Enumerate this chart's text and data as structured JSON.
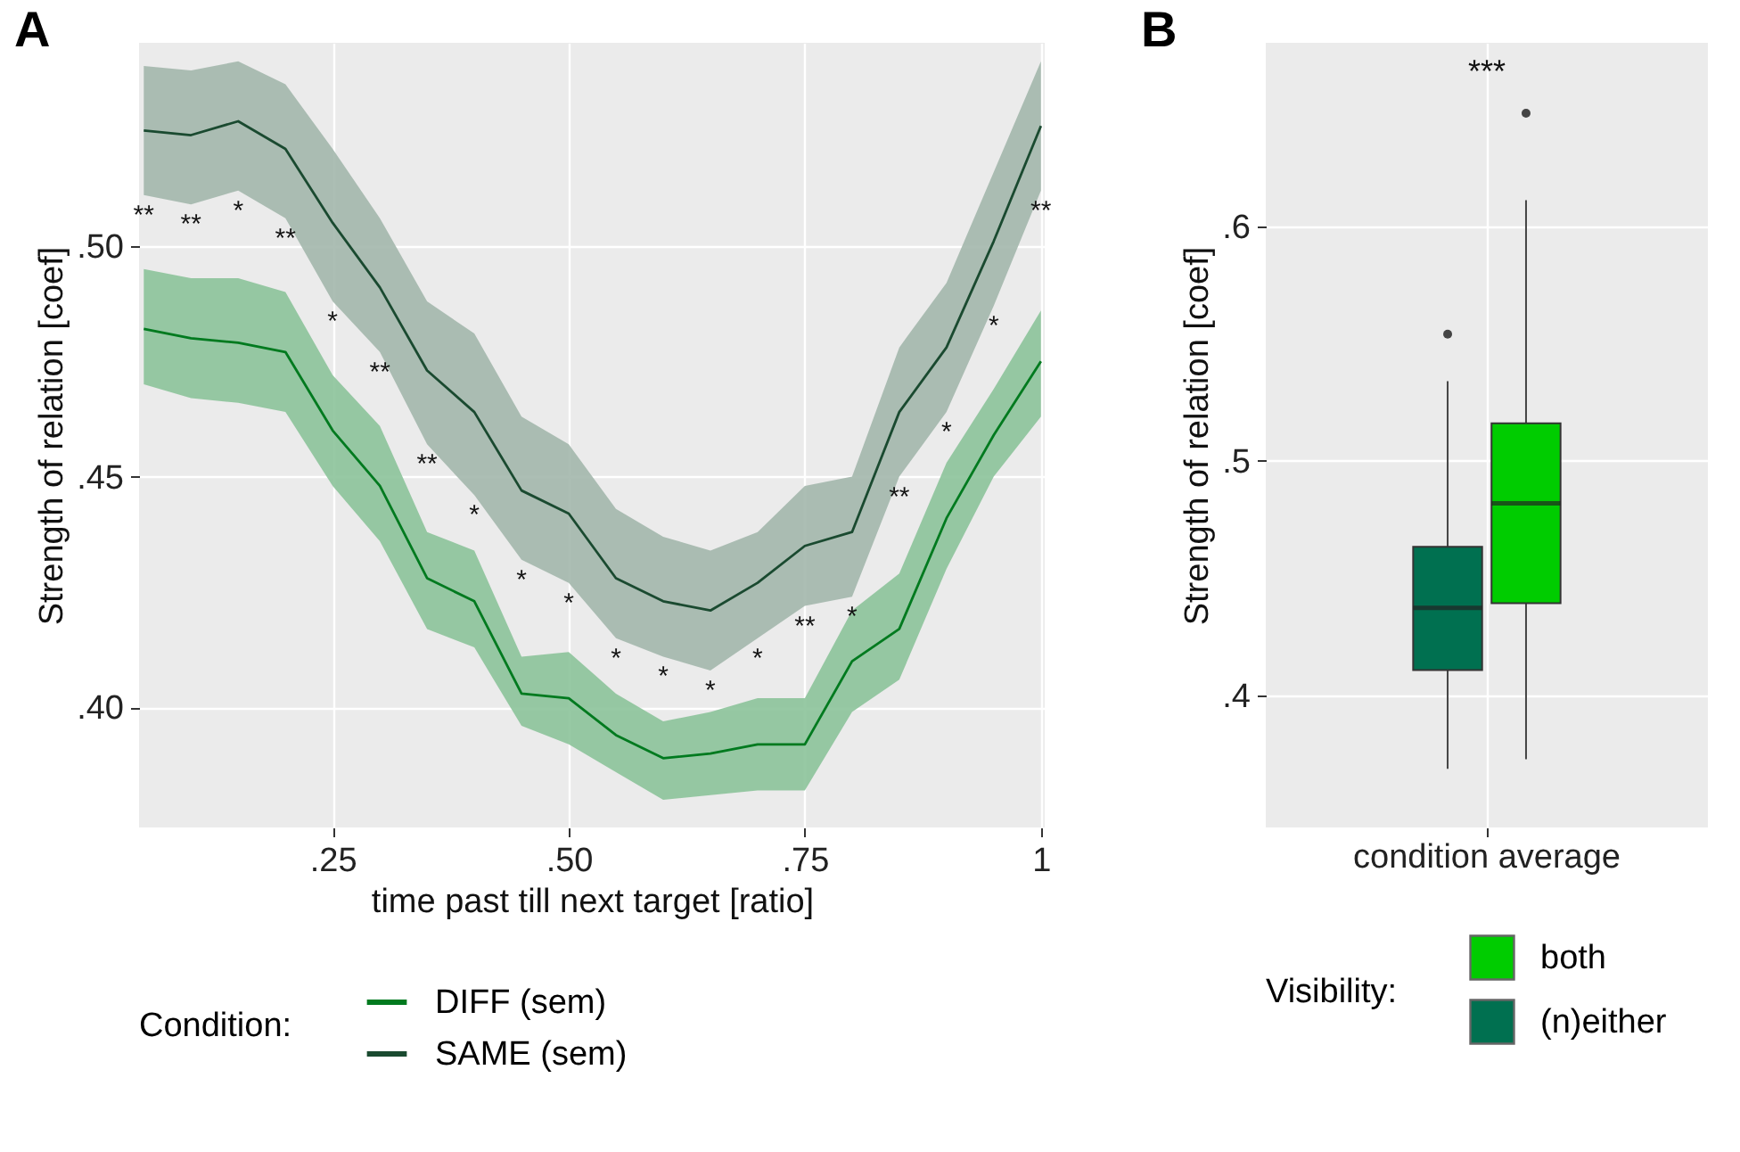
{
  "chart_data": [
    {
      "type": "line",
      "title": "A",
      "xlabel": "time past till next target [ratio]",
      "ylabel": "Strength of relation [coef]",
      "legend_title": "Condition:",
      "legend": "bottom",
      "grid": true,
      "x": [
        0.05,
        0.1,
        0.15,
        0.2,
        0.25,
        0.3,
        0.35,
        0.4,
        0.45,
        0.5,
        0.55,
        0.6,
        0.65,
        0.7,
        0.75,
        0.8,
        0.85,
        0.9,
        0.95,
        1.0
      ],
      "xlim": [
        0.045,
        1.004
      ],
      "xticks": [
        {
          "value": 0.25,
          "label": ".25"
        },
        {
          "value": 0.5,
          "label": ".50"
        },
        {
          "value": 0.75,
          "label": ".75"
        },
        {
          "value": 1,
          "label": "1"
        }
      ],
      "ylim": [
        0.374,
        0.544
      ],
      "yticks": [
        {
          "value": 0.4,
          "label": ".40"
        },
        {
          "value": 0.45,
          "label": ".45"
        },
        {
          "value": 0.5,
          "label": ".50"
        }
      ],
      "series": [
        {
          "name": "DIFF (sem)",
          "color": "#007a1f",
          "values": [
            0.482,
            0.48,
            0.479,
            0.477,
            0.46,
            0.448,
            0.428,
            0.423,
            0.403,
            0.402,
            0.394,
            0.389,
            0.39,
            0.392,
            0.392,
            0.41,
            0.417,
            0.441,
            0.459,
            0.475
          ],
          "lower": [
            0.47,
            0.467,
            0.466,
            0.464,
            0.448,
            0.436,
            0.417,
            0.413,
            0.396,
            0.392,
            0.386,
            0.38,
            0.381,
            0.382,
            0.382,
            0.399,
            0.406,
            0.43,
            0.45,
            0.463
          ],
          "upper": [
            0.495,
            0.493,
            0.493,
            0.49,
            0.472,
            0.461,
            0.438,
            0.434,
            0.411,
            0.412,
            0.403,
            0.397,
            0.399,
            0.402,
            0.402,
            0.421,
            0.429,
            0.453,
            0.469,
            0.486
          ]
        },
        {
          "name": "SAME (sem)",
          "color": "#1a4a30",
          "values": [
            0.525,
            0.524,
            0.527,
            0.521,
            0.505,
            0.491,
            0.473,
            0.464,
            0.447,
            0.442,
            0.428,
            0.423,
            0.421,
            0.427,
            0.435,
            0.438,
            0.464,
            0.478,
            0.501,
            0.526
          ],
          "lower": [
            0.511,
            0.509,
            0.512,
            0.506,
            0.488,
            0.477,
            0.457,
            0.446,
            0.432,
            0.427,
            0.415,
            0.411,
            0.408,
            0.415,
            0.422,
            0.424,
            0.45,
            0.464,
            0.487,
            0.512
          ],
          "upper": [
            0.539,
            0.538,
            0.54,
            0.535,
            0.521,
            0.506,
            0.488,
            0.481,
            0.463,
            0.457,
            0.443,
            0.437,
            0.434,
            0.438,
            0.448,
            0.45,
            0.478,
            0.492,
            0.516,
            0.54
          ]
        }
      ],
      "annotations": [
        "**",
        "**",
        "*",
        "**",
        "*",
        "**",
        "**",
        "*",
        "*",
        "*",
        "*",
        "*",
        "*",
        "*",
        "**",
        "*",
        "**",
        "*",
        "*",
        "**"
      ]
    },
    {
      "type": "box",
      "title": "B",
      "ylabel": "Strength of relation [coef]",
      "legend_title": "Visibility:",
      "legend": "bottom",
      "grid": true,
      "categories": [
        "condition average"
      ],
      "ylim": [
        0.344,
        0.678
      ],
      "yticks": [
        {
          "value": 0.4,
          "label": ".4"
        },
        {
          "value": 0.5,
          "label": ".5"
        },
        {
          "value": 0.6,
          "label": ".6"
        }
      ],
      "series": [
        {
          "name": "both",
          "color": "#00cc00",
          "boxes": [
            {
              "low": 0.373,
              "q1": 0.4395,
              "median": 0.482,
              "q3": 0.516,
              "high": 0.611,
              "outliers": [
                0.648
              ]
            }
          ]
        },
        {
          "name": "(n)either",
          "color": "#007050",
          "boxes": [
            {
              "low": 0.369,
              "q1": 0.411,
              "median": 0.4375,
              "q3": 0.4635,
              "high": 0.534,
              "outliers": [
                0.554
              ]
            }
          ]
        }
      ],
      "annotations": [
        "***"
      ]
    }
  ]
}
